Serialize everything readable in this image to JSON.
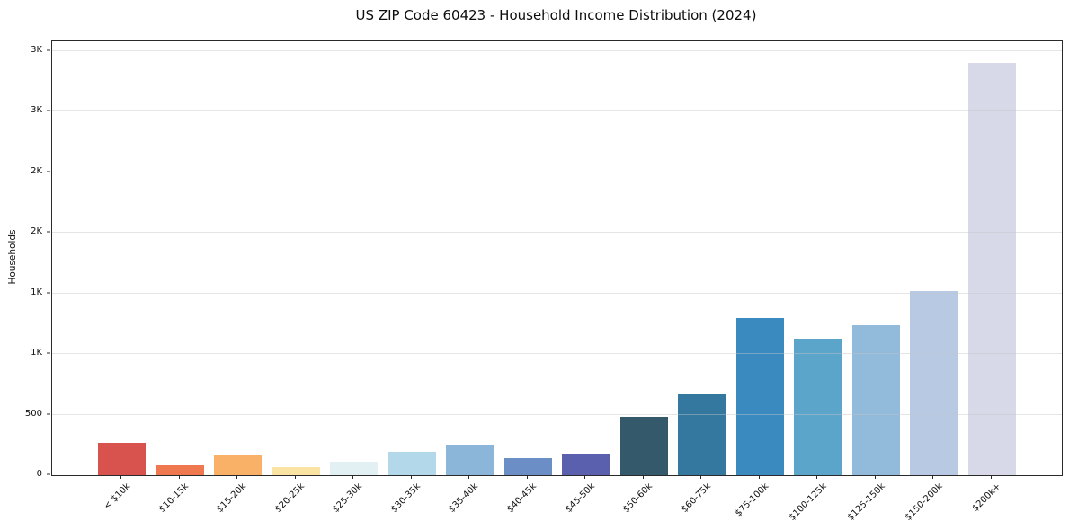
{
  "title": "US ZIP Code 60423 - Household Income Distribution (2024)",
  "chart_data": {
    "type": "bar",
    "title": "US ZIP Code 60423 - Household Income Distribution (2024)",
    "xlabel": "",
    "ylabel": "Households",
    "categories": [
      "< $10k",
      "$10-15k",
      "$15-20k",
      "$20-25k",
      "$25-30k",
      "$30-35k",
      "$35-40k",
      "$40-45k",
      "$45-50k",
      "$50-60k",
      "$60-75k",
      "$75-100k",
      "$100-125k",
      "$125-150k",
      "$150-200k",
      "$200k+"
    ],
    "values": [
      270,
      80,
      160,
      70,
      110,
      190,
      250,
      140,
      175,
      480,
      665,
      1300,
      1130,
      1240,
      1520,
      3400
    ],
    "bar_colors": [
      "#d8534e",
      "#f0784e",
      "#f9b168",
      "#fbe3a3",
      "#e3f0f3",
      "#b3d8e9",
      "#8bb6da",
      "#6c8ec6",
      "#5a5fae",
      "#34596b",
      "#34789f",
      "#3a8ac0",
      "#5ba5ca",
      "#92badb",
      "#b7c9e3",
      "#d8d9e8"
    ],
    "ylim": [
      0,
      3580
    ],
    "yticks": {
      "values": [
        0,
        500,
        1000,
        1500,
        2000,
        2500,
        3000,
        3500
      ],
      "labels": [
        "0",
        "500",
        "1K",
        "1K",
        "2K",
        "2K",
        "3K",
        "3K"
      ]
    },
    "grid": "horizontal-only",
    "legend": "none",
    "x_tick_rotation_deg": 45,
    "plot_background": "#ffffff",
    "gridline_color": "#e8e9ea"
  }
}
